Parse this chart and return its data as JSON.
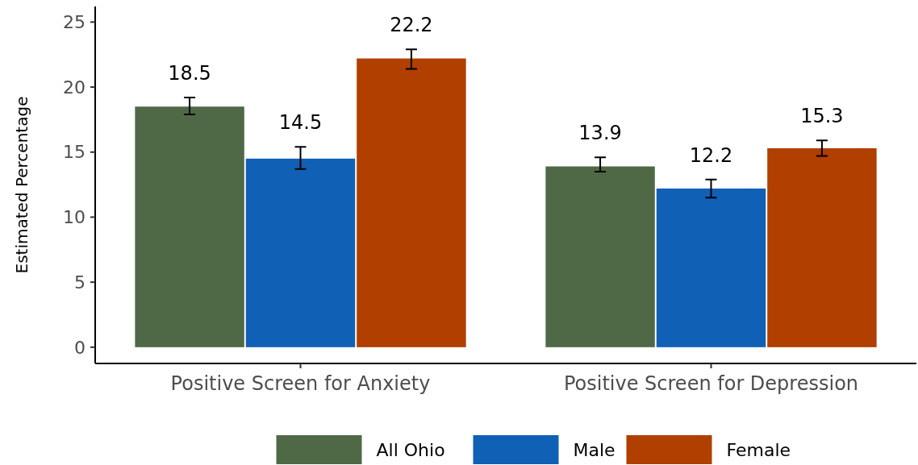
{
  "chart_data": {
    "type": "bar",
    "ylabel": "Estimated Percentage",
    "categories": [
      "Positive Screen for Anxiety",
      "Positive Screen for Depression"
    ],
    "series": [
      {
        "name": "All Ohio",
        "color": "#4f6946",
        "values": [
          18.5,
          13.9
        ],
        "errors": [
          [
            17.9,
            19.2
          ],
          [
            13.5,
            14.6
          ]
        ]
      },
      {
        "name": "Male",
        "color": "#1060b6",
        "values": [
          14.5,
          12.2
        ],
        "errors": [
          [
            13.7,
            15.4
          ],
          [
            11.5,
            12.9
          ]
        ]
      },
      {
        "name": "Female",
        "color": "#b03f00",
        "values": [
          22.2,
          15.3
        ],
        "errors": [
          [
            21.4,
            22.9
          ],
          [
            14.7,
            15.9
          ]
        ]
      }
    ],
    "ylim": [
      -1.25,
      26.2
    ],
    "yticks": [
      0,
      5,
      10,
      15,
      20,
      25
    ],
    "grid": false,
    "legend": "bottom",
    "data_labels": true
  }
}
